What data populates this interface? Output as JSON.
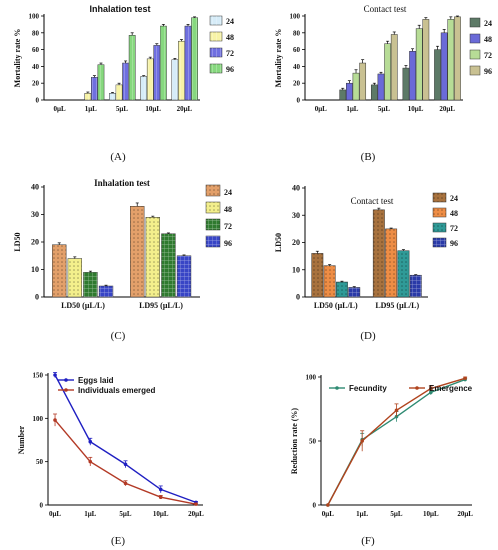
{
  "panel_labels": [
    "(A)",
    "(B)",
    "(C)",
    "(D)",
    "(E)",
    "(F)"
  ],
  "chart_data": [
    {
      "id": "A",
      "type": "bar",
      "title": "Inhalation test",
      "ylabel": "Mortality rate %",
      "xlabel": "",
      "categories": [
        "0μL",
        "1μL",
        "5μL",
        "10μL",
        "20μL"
      ],
      "ylim": [
        0,
        100
      ],
      "yticks": [
        0,
        20,
        40,
        60,
        80,
        100
      ],
      "legend_position": "right",
      "series": [
        {
          "name": "24",
          "color": "#d6ecf8",
          "values": [
            0,
            0,
            8,
            28,
            48
          ],
          "errors": [
            0,
            0,
            1,
            1,
            1.5
          ]
        },
        {
          "name": "48",
          "color": "#f7f3a6",
          "values": [
            0,
            8,
            18,
            49,
            70
          ],
          "errors": [
            0,
            1.5,
            2,
            2,
            2
          ]
        },
        {
          "name": "72",
          "color": "#6f6fe0",
          "values": [
            0,
            27,
            44,
            65,
            88
          ],
          "errors": [
            0,
            2,
            2.5,
            2,
            2
          ]
        },
        {
          "name": "96",
          "color": "#86d87e",
          "values": [
            0,
            42,
            77,
            88,
            98
          ],
          "errors": [
            0,
            2,
            3,
            2,
            1
          ]
        }
      ]
    },
    {
      "id": "B",
      "type": "bar",
      "title": "Contact test",
      "ylabel": "Mortality rate %",
      "xlabel": "",
      "categories": [
        "0μL",
        "1μL",
        "5μL",
        "10μL",
        "20μL"
      ],
      "ylim": [
        0,
        100
      ],
      "yticks": [
        0,
        20,
        40,
        60,
        80,
        100
      ],
      "legend_position": "right",
      "series": [
        {
          "name": "24",
          "color": "#5d7a67",
          "values": [
            0,
            12,
            18,
            38,
            60
          ],
          "errors": [
            0,
            2,
            2,
            3,
            4
          ]
        },
        {
          "name": "48",
          "color": "#6a6ad8",
          "values": [
            0,
            20,
            31,
            58,
            80
          ],
          "errors": [
            0,
            3,
            2,
            3,
            4
          ]
        },
        {
          "name": "72",
          "color": "#b7dc96",
          "values": [
            0,
            32,
            67,
            85,
            96
          ],
          "errors": [
            0,
            4,
            3,
            4,
            3
          ]
        },
        {
          "name": "96",
          "color": "#c9c192",
          "values": [
            0,
            44,
            78,
            96,
            99
          ],
          "errors": [
            0,
            4,
            3,
            2,
            1
          ]
        }
      ]
    },
    {
      "id": "C",
      "type": "bar",
      "title": "Inhalation test",
      "ylabel": "LD50",
      "xlabel": "",
      "categories": [
        "LD50 (μL/L)",
        "LD95 (μL/L)"
      ],
      "ylim": [
        0,
        40
      ],
      "yticks": [
        0,
        10,
        20,
        30,
        40
      ],
      "legend_position": "right",
      "series": [
        {
          "name": "24",
          "color": "#e3a06a",
          "values": [
            19,
            33
          ],
          "errors": [
            0.7,
            1.2
          ]
        },
        {
          "name": "48",
          "color": "#f3ef8c",
          "values": [
            14,
            29
          ],
          "errors": [
            0.6,
            0.4
          ]
        },
        {
          "name": "72",
          "color": "#2f7a2f",
          "values": [
            9,
            23
          ],
          "errors": [
            0.4,
            0.3
          ]
        },
        {
          "name": "96",
          "color": "#3845c6",
          "values": [
            4,
            15
          ],
          "errors": [
            0.3,
            0.3
          ]
        }
      ]
    },
    {
      "id": "D",
      "type": "bar",
      "title": "Contact test",
      "ylabel": "LD50",
      "xlabel": "",
      "categories": [
        "LD50 (μL/L)",
        "LD95 (μL/L)"
      ],
      "ylim": [
        0,
        40
      ],
      "yticks": [
        0,
        10,
        20,
        30,
        40
      ],
      "legend_position": "right",
      "series": [
        {
          "name": "24",
          "color": "#a8723e",
          "values": [
            16,
            32
          ],
          "errors": [
            0.8,
            0.6
          ]
        },
        {
          "name": "48",
          "color": "#ee8d45",
          "values": [
            11.5,
            25
          ],
          "errors": [
            0.4,
            0.3
          ]
        },
        {
          "name": "72",
          "color": "#2f9a97",
          "values": [
            5.5,
            17
          ],
          "errors": [
            0.3,
            0.4
          ]
        },
        {
          "name": "96",
          "color": "#2a3aa8",
          "values": [
            3.5,
            8
          ],
          "errors": [
            0.3,
            0.2
          ]
        }
      ]
    },
    {
      "id": "E",
      "type": "line",
      "title": "",
      "ylabel": "Number",
      "xlabel": "",
      "categories": [
        "0μL",
        "1μL",
        "5μL",
        "10μL",
        "20μL"
      ],
      "ylim": [
        0,
        150
      ],
      "yticks": [
        0,
        50,
        100,
        150
      ],
      "legend_position": "top-left",
      "series": [
        {
          "name": "Eggs laid",
          "color": "#1f1fc2",
          "values": [
            150,
            73,
            47,
            18,
            3
          ],
          "errors": [
            3,
            4,
            4,
            4,
            1
          ]
        },
        {
          "name": "Individuals emerged",
          "color": "#b33a26",
          "values": [
            98,
            50,
            25,
            9,
            1
          ],
          "errors": [
            7,
            5,
            3,
            2,
            1
          ]
        }
      ]
    },
    {
      "id": "F",
      "type": "line",
      "title": "",
      "ylabel": "Reduction rate (%)",
      "xlabel": "",
      "categories": [
        "0μL",
        "1μL",
        "5μL",
        "10μL",
        "20μL"
      ],
      "ylim": [
        0,
        100
      ],
      "yticks": [
        0,
        50,
        100
      ],
      "legend_position": "top",
      "series": [
        {
          "name": "Fecundity",
          "color": "#2e8a72",
          "values": [
            0,
            51,
            69,
            88,
            98
          ],
          "errors": [
            0,
            5,
            4,
            2,
            1
          ]
        },
        {
          "name": "Emergence",
          "color": "#b0441e",
          "values": [
            0,
            50,
            74,
            91,
            99
          ],
          "errors": [
            0,
            8,
            5,
            2,
            1
          ]
        }
      ]
    }
  ]
}
